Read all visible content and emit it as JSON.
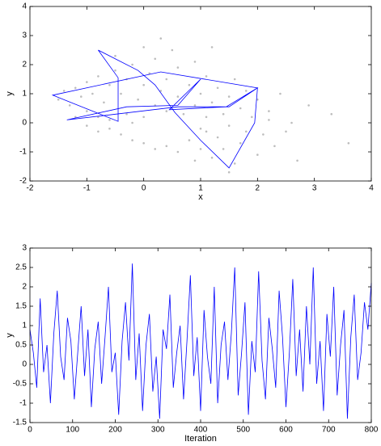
{
  "chart_data": [
    {
      "type": "scatter",
      "xlabel": "x",
      "ylabel": "y",
      "xlim": [
        -2,
        4
      ],
      "ylim": [
        -2,
        4
      ],
      "xticks": [
        -2,
        -1,
        0,
        1,
        2,
        3,
        4
      ],
      "yticks": [
        -2,
        -1,
        0,
        1,
        2,
        3,
        4
      ],
      "series": [
        {
          "type": "scatter",
          "color": "#bdbdbd",
          "x": [
            -1.5,
            -1.4,
            -1.3,
            -1.2,
            -1.1,
            -1.0,
            -1.0,
            -0.9,
            -0.8,
            -0.8,
            -0.7,
            -0.6,
            -0.6,
            -0.5,
            -0.4,
            -0.3,
            -0.3,
            -0.2,
            -0.1,
            0,
            0,
            0.1,
            0.2,
            0.2,
            0.3,
            0.4,
            0.4,
            0.5,
            0.6,
            0.6,
            0.7,
            0.8,
            0.9,
            0.9,
            1.0,
            1.1,
            1.1,
            1.2,
            1.3,
            1.4,
            1.5,
            1.6,
            1.7,
            1.8,
            1.9,
            2.0,
            2.2,
            2.4,
            2.6,
            2.9,
            3.3,
            3.6,
            -1.0,
            -0.8,
            -0.6,
            -0.4,
            -0.2,
            0,
            0.2,
            0.4,
            0.6,
            0.8,
            1.0,
            1.1,
            1.2,
            1.3,
            1.4,
            1.5,
            1.6,
            1.7,
            1.8,
            2.0,
            2.1,
            2.3,
            2.5,
            2.7,
            1.0,
            0.9,
            1.5,
            2.2,
            -1.2,
            -0.2,
            0.3,
            1.2,
            -0.5,
            0.0
          ],
          "values": [
            0.8,
            1.1,
            0.6,
            1.2,
            0.9,
            0.4,
            1.4,
            1.0,
            0.2,
            1.6,
            0.7,
            1.3,
            0.1,
            1.8,
            1.0,
            0.3,
            1.5,
            2.0,
            0.8,
            1.3,
            0.2,
            1.7,
            0.6,
            2.2,
            1.1,
            0.4,
            1.5,
            2.5,
            0.9,
            1.9,
            0.3,
            1.3,
            0.6,
            2.1,
            1.0,
            0.2,
            1.6,
            0.7,
            1.2,
            0.3,
            0.9,
            1.5,
            0.5,
            1.1,
            0.2,
            0.8,
            0.4,
            1.0,
            0.0,
            0.6,
            0.3,
            -0.7,
            -0.1,
            -0.3,
            -0.2,
            -0.4,
            -0.6,
            -0.7,
            -0.9,
            -0.8,
            -1.0,
            -0.6,
            -0.9,
            -0.3,
            -1.2,
            -0.5,
            -0.9,
            -0.1,
            -1.4,
            -0.7,
            -0.3,
            -1.1,
            -0.4,
            -0.8,
            -0.3,
            -1.3,
            -0.2,
            -1.3,
            -1.7,
            0.1,
            0.2,
            0.0,
            2.9,
            2.6,
            2.3,
            2.6
          ]
        },
        {
          "type": "line",
          "color": "#0000ff",
          "x": [
            -0.8,
            -0.45,
            -0.45,
            -1.6,
            0.3,
            2.0,
            1.5,
            0.6,
            -1.35,
            -0.3,
            0.6,
            1.0,
            0.45,
            1.45,
            2.0,
            1.95,
            1.5,
            1.0,
            0.55,
            0.2,
            -0.1,
            -0.8
          ],
          "values": [
            2.5,
            1.55,
            0.05,
            0.95,
            1.75,
            1.2,
            0.55,
            0.55,
            0.1,
            0.55,
            0.6,
            1.5,
            0.45,
            0.55,
            1.2,
            0.0,
            -1.55,
            -0.6,
            0.35,
            1.3,
            1.8,
            2.5
          ]
        }
      ]
    },
    {
      "type": "line",
      "xlabel": "Iteration",
      "ylabel": "y",
      "xlim": [
        0,
        800
      ],
      "ylim": [
        -1.5,
        3
      ],
      "xticks": [
        0,
        100,
        200,
        300,
        400,
        500,
        600,
        700,
        800
      ],
      "yticks": [
        -1.5,
        -1,
        -0.5,
        0,
        0.5,
        1,
        1.5,
        2,
        2.5,
        3
      ],
      "series": [
        {
          "type": "line",
          "color": "#0000ff",
          "x": [
            0,
            8,
            16,
            24,
            32,
            40,
            48,
            56,
            64,
            72,
            80,
            88,
            96,
            104,
            112,
            120,
            128,
            136,
            144,
            152,
            160,
            168,
            176,
            184,
            192,
            200,
            208,
            216,
            224,
            232,
            240,
            248,
            256,
            264,
            272,
            280,
            288,
            296,
            304,
            312,
            320,
            328,
            336,
            344,
            352,
            360,
            368,
            376,
            384,
            392,
            400,
            408,
            416,
            424,
            432,
            440,
            448,
            456,
            464,
            472,
            480,
            488,
            496,
            504,
            512,
            520,
            528,
            536,
            544,
            552,
            560,
            568,
            576,
            584,
            592,
            600,
            608,
            616,
            624,
            632,
            640,
            648,
            656,
            664,
            672,
            680,
            688,
            696,
            704,
            712,
            720,
            728,
            736,
            744,
            752,
            760,
            768,
            776,
            784,
            792,
            800
          ],
          "values": [
            0.9,
            0.3,
            -0.6,
            1.7,
            -0.2,
            0.5,
            -1.0,
            0.8,
            1.9,
            0.2,
            -0.4,
            1.2,
            0.6,
            -0.9,
            0.3,
            1.5,
            -0.3,
            0.9,
            -1.1,
            0.4,
            1.1,
            -0.5,
            0.7,
            2.0,
            -0.2,
            0.3,
            -1.3,
            0.6,
            1.6,
            0.1,
            2.6,
            -0.4,
            0.8,
            -1.2,
            0.5,
            1.3,
            -0.7,
            0.2,
            -1.4,
            0.9,
            0.4,
            1.8,
            -0.6,
            0.3,
            1.0,
            -0.9,
            0.6,
            2.3,
            -0.3,
            0.7,
            -1.2,
            1.4,
            0.2,
            -0.5,
            2.0,
            -1.0,
            0.5,
            1.1,
            -0.4,
            0.8,
            2.5,
            -0.8,
            0.3,
            1.6,
            -1.3,
            0.6,
            -0.2,
            2.4,
            0.1,
            -0.9,
            1.2,
            0.4,
            -0.6,
            1.9,
            0.7,
            -1.1,
            0.3,
            2.2,
            -0.3,
            0.9,
            -0.7,
            1.5,
            0.0,
            2.5,
            -0.5,
            0.6,
            -1.2,
            1.3,
            0.2,
            2.0,
            -0.8,
            0.5,
            1.4,
            -1.4,
            0.7,
            1.8,
            -0.4,
            0.3,
            1.6,
            0.9,
            2.1
          ]
        }
      ]
    }
  ]
}
